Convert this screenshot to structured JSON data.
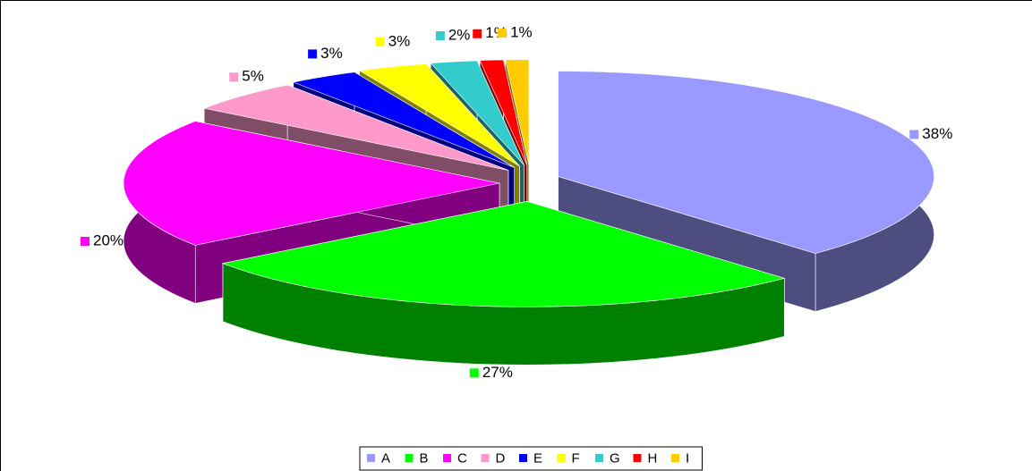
{
  "chart_data": {
    "type": "pie",
    "categories": [
      "A",
      "B",
      "C",
      "D",
      "E",
      "F",
      "G",
      "H",
      "I"
    ],
    "values": [
      38,
      27,
      20,
      5,
      3,
      3,
      2,
      1,
      1
    ],
    "value_labels": [
      "38%",
      "27%",
      "20%",
      "5%",
      "3%",
      "3%",
      "2%",
      "1%",
      "1%"
    ],
    "colors": [
      "#9999ff",
      "#00ff00",
      "#ff00ff",
      "#ff99cc",
      "#0000ff",
      "#ffff00",
      "#33cccc",
      "#ff0000",
      "#ffcc00"
    ],
    "legend": "bottom"
  }
}
